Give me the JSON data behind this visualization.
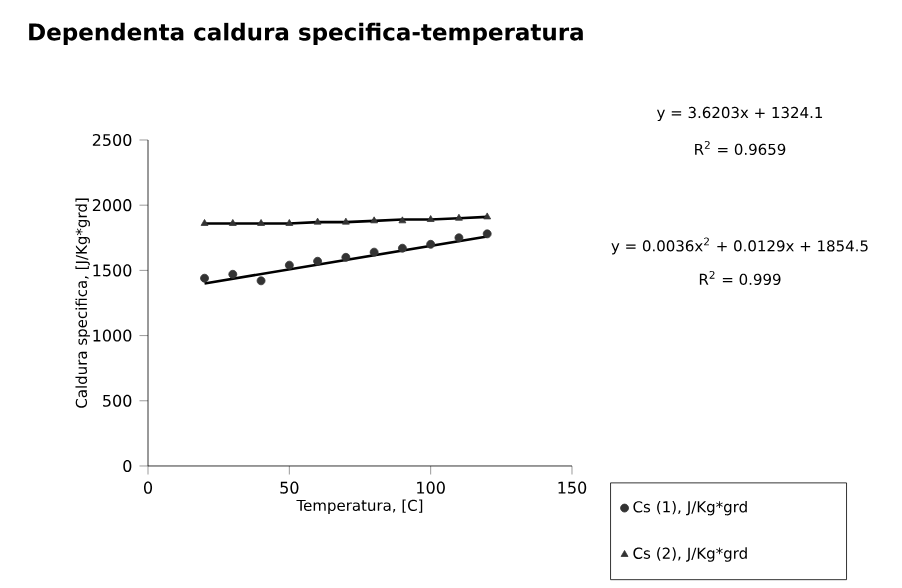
{
  "chart_data": {
    "type": "scatter",
    "title": "Dependenta caldura specifica-temperatura",
    "xlabel": "Temperatura, [C]",
    "ylabel": "Caldura specifica, [J/Kg*grd]",
    "xlim": [
      0,
      150
    ],
    "xticks": [
      0,
      50,
      100,
      150
    ],
    "ylim": [
      0,
      2500
    ],
    "yticks": [
      0,
      500,
      1000,
      1500,
      2000,
      2500
    ],
    "grid": false,
    "legend": "bottom right",
    "annotations": [
      "y = 3.6203x + 1324.1",
      "R$^{2}$ = 0.9659",
      "y = 0.0036x$^{2}$ + 0.0129x + 1854.5",
      "R$^{2}$ = 0.999"
    ],
    "series": [
      {
        "name": "Cs (1), J/Kg*grd",
        "color": "#333333",
        "marker": "circle",
        "x": [
          20,
          30,
          40,
          50,
          60,
          70,
          80,
          90,
          100,
          110,
          120
        ],
        "values": [
          1440,
          1470,
          1420,
          1540,
          1570,
          1600,
          1640,
          1670,
          1700,
          1750,
          1780
        ]
      },
      {
        "name": "Cs (2), J/Kg*grd",
        "color": "#333333",
        "marker": "triangle",
        "x": [
          20,
          30,
          40,
          50,
          60,
          70,
          80,
          90,
          100,
          110,
          120
        ],
        "values": [
          1860,
          1860,
          1860,
          1860,
          1870,
          1870,
          1880,
          1880,
          1890,
          1900,
          1910
        ]
      },
      {
        "type": "line",
        "color": "#000000",
        "marker": "none",
        "x": [
          20,
          120
        ],
        "values": [
          1400,
          1760
        ]
      },
      {
        "type": "line",
        "color": "#000000",
        "marker": "none",
        "x": [
          20,
          30,
          40,
          50,
          60,
          70,
          80,
          90,
          100,
          110,
          120
        ],
        "values": [
          1860,
          1860,
          1860,
          1860,
          1870,
          1870,
          1880,
          1890,
          1890,
          1900,
          1910
        ]
      }
    ]
  }
}
